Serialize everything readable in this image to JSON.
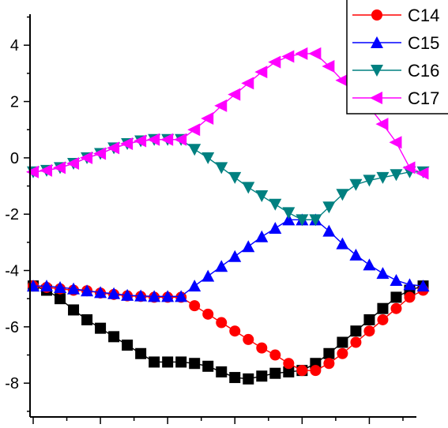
{
  "chart_data": {
    "type": "line",
    "x": [
      0,
      1,
      2,
      3,
      4,
      5,
      6,
      7,
      8,
      9,
      10,
      11,
      12,
      13,
      14,
      15,
      16,
      17,
      18,
      19,
      20,
      21,
      22,
      23,
      24,
      25,
      26,
      27,
      28,
      29
    ],
    "xlim": [
      0,
      28.5
    ],
    "ylim": [
      -9.2,
      5.1
    ],
    "yticks": [
      -8,
      -6,
      -4,
      -2,
      0,
      2,
      4
    ],
    "ytick_labels": [
      "-8",
      "-6",
      "-4",
      "-2",
      "0",
      "2",
      "4"
    ],
    "grid": false,
    "legend": "top-right",
    "series": [
      {
        "name": "",
        "color": "#000000",
        "marker": "square",
        "values": [
          -4.55,
          -4.7,
          -5.0,
          -5.4,
          -5.75,
          -6.05,
          -6.35,
          -6.65,
          -6.95,
          -7.25,
          -7.25,
          -7.25,
          -7.3,
          -7.4,
          -7.6,
          -7.8,
          -7.85,
          -7.75,
          -7.65,
          -7.6,
          -7.55,
          -7.3,
          -6.95,
          -6.55,
          -6.15,
          -5.75,
          -5.35,
          -4.95,
          -4.7,
          -4.55
        ]
      },
      {
        "name": "C14",
        "color": "#ff0000",
        "marker": "circle",
        "values": [
          -4.55,
          -4.6,
          -4.65,
          -4.7,
          -4.72,
          -4.8,
          -4.85,
          -4.9,
          -4.92,
          -4.95,
          -4.95,
          -4.95,
          -5.25,
          -5.55,
          -5.85,
          -6.15,
          -6.45,
          -6.75,
          -7.0,
          -7.3,
          -7.55,
          -7.55,
          -7.3,
          -6.95,
          -6.55,
          -6.15,
          -5.75,
          -5.35,
          -4.95,
          -4.7
        ]
      },
      {
        "name": "C15",
        "color": "#0000ff",
        "marker": "triangle-up",
        "values": [
          -4.55,
          -4.55,
          -4.6,
          -4.65,
          -4.72,
          -4.78,
          -4.82,
          -4.88,
          -4.9,
          -4.92,
          -4.92,
          -4.92,
          -4.55,
          -4.2,
          -3.85,
          -3.5,
          -3.15,
          -2.8,
          -2.5,
          -2.2,
          -2.2,
          -2.2,
          -2.6,
          -3.05,
          -3.45,
          -3.8,
          -4.1,
          -4.35,
          -4.5,
          -4.55
        ]
      },
      {
        "name": "C16",
        "color": "#008080",
        "marker": "triangle-down",
        "values": [
          -0.5,
          -0.45,
          -0.35,
          -0.2,
          0.0,
          0.15,
          0.35,
          0.5,
          0.6,
          0.65,
          0.65,
          0.65,
          0.3,
          0.0,
          -0.35,
          -0.7,
          -1.05,
          -1.35,
          -1.65,
          -1.95,
          -2.2,
          -2.2,
          -1.75,
          -1.3,
          -0.95,
          -0.8,
          -0.7,
          -0.6,
          -0.5,
          -0.5
        ]
      },
      {
        "name": "C17",
        "color": "#ff00ff",
        "marker": "triangle-left",
        "values": [
          -0.5,
          -0.45,
          -0.35,
          -0.2,
          0.0,
          0.15,
          0.35,
          0.5,
          0.6,
          0.65,
          0.65,
          0.65,
          1.0,
          1.4,
          1.85,
          2.25,
          2.65,
          3.05,
          3.4,
          3.6,
          3.7,
          3.7,
          3.25,
          2.75,
          2.25,
          1.8,
          1.2,
          0.55,
          -0.35,
          -0.55
        ]
      }
    ]
  }
}
